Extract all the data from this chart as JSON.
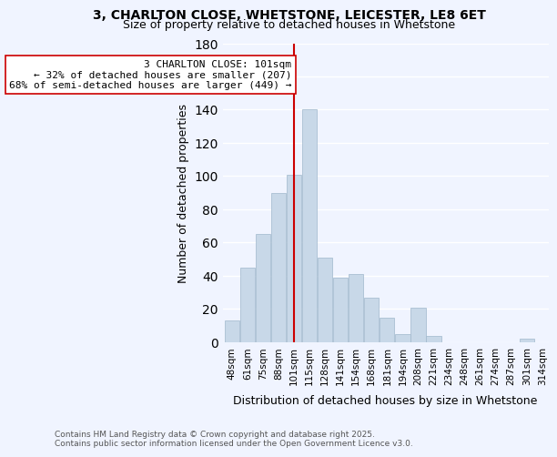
{
  "title1": "3, CHARLTON CLOSE, WHETSTONE, LEICESTER, LE8 6ET",
  "title2": "Size of property relative to detached houses in Whetstone",
  "xlabel": "Distribution of detached houses by size in Whetstone",
  "ylabel": "Number of detached properties",
  "values": [
    13,
    45,
    65,
    90,
    101,
    140,
    51,
    39,
    41,
    27,
    15,
    5,
    21,
    4,
    0,
    0,
    0,
    0,
    0,
    2
  ],
  "bar_color": "#c8d8e8",
  "bar_edge_color": "#a0b8cc",
  "vline_idx": 4,
  "vline_color": "#cc0000",
  "annotation_text": "3 CHARLTON CLOSE: 101sqm\n← 32% of detached houses are smaller (207)\n68% of semi-detached houses are larger (449) →",
  "annotation_box_color": "white",
  "annotation_box_edge": "#cc0000",
  "annotation_fontsize": 8,
  "bg_color": "#f0f4ff",
  "footer_text": "Contains HM Land Registry data © Crown copyright and database right 2025.\nContains public sector information licensed under the Open Government Licence v3.0.",
  "tick_labels": [
    "48sqm",
    "61sqm",
    "75sqm",
    "88sqm",
    "101sqm",
    "115sqm",
    "128sqm",
    "141sqm",
    "154sqm",
    "168sqm",
    "181sqm",
    "194sqm",
    "208sqm",
    "221sqm",
    "234sqm",
    "248sqm",
    "261sqm",
    "274sqm",
    "287sqm",
    "301sqm",
    "314sqm"
  ],
  "ylim": [
    0,
    180
  ],
  "ytick_step": 20
}
